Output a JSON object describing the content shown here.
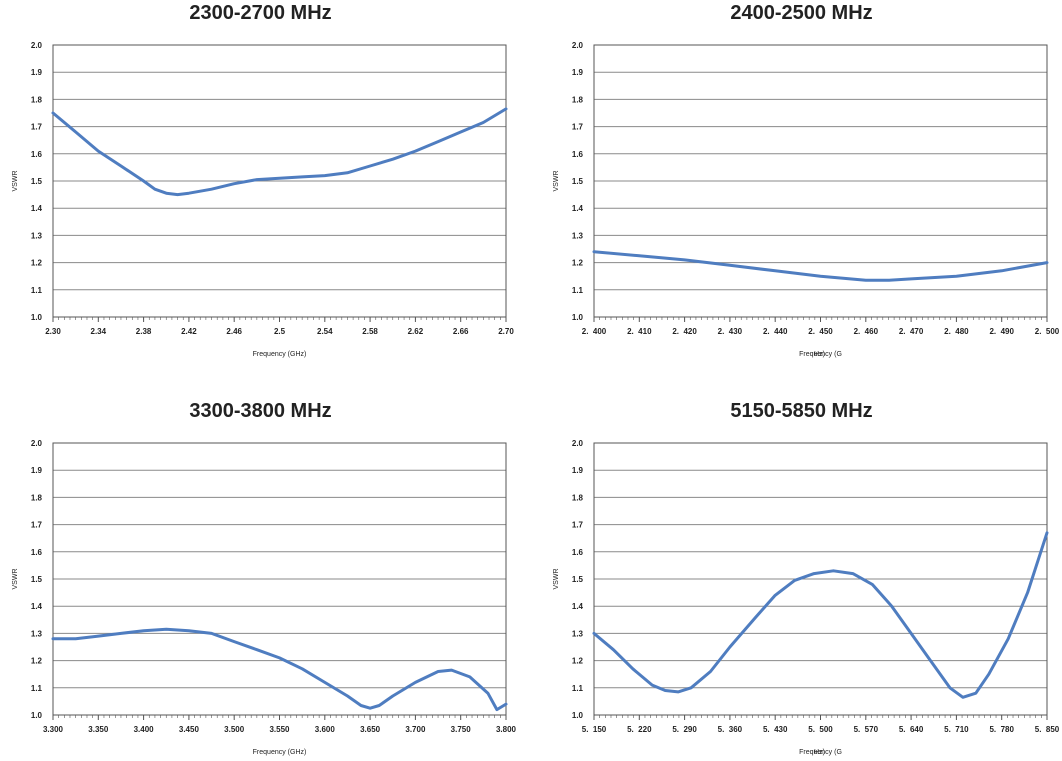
{
  "chart_data": [
    {
      "type": "line",
      "title": "2300-2700 MHz",
      "xlabel": "Frequency (GHz)",
      "ylabel": "VSWR",
      "ylim": [
        1.0,
        2.0
      ],
      "yticks": [
        "1.0",
        "1.1",
        "1.2",
        "1.3",
        "1.4",
        "1.5",
        "1.6",
        "1.7",
        "1.8",
        "1.9",
        "2.0"
      ],
      "xlim": [
        2.3,
        2.7
      ],
      "xticks": [
        "2.30",
        "2.34",
        "2.38",
        "2.42",
        "2.46",
        "2.5",
        "2.54",
        "2.58",
        "2.62",
        "2.66",
        "2.70"
      ],
      "grid": true,
      "color": "#4f7dc0",
      "series": [
        {
          "x": [
            2.3,
            2.32,
            2.34,
            2.36,
            2.38,
            2.39,
            2.4,
            2.41,
            2.42,
            2.44,
            2.46,
            2.48,
            2.5,
            2.52,
            2.54,
            2.56,
            2.58,
            2.6,
            2.62,
            2.64,
            2.66,
            2.68,
            2.7
          ],
          "values": [
            1.75,
            1.68,
            1.61,
            1.555,
            1.5,
            1.47,
            1.455,
            1.45,
            1.455,
            1.47,
            1.49,
            1.505,
            1.51,
            1.515,
            1.52,
            1.53,
            1.555,
            1.58,
            1.61,
            1.645,
            1.68,
            1.715,
            1.765
          ]
        }
      ]
    },
    {
      "type": "line",
      "title": "2400-2500 MHz",
      "xlabel": "Frequency (G",
      "xlabel_overlay": "Hz)",
      "ylabel": "VSWR",
      "ylim": [
        1.0,
        2.0
      ],
      "yticks": [
        "1.0",
        "1.1",
        "1.2",
        "1.3",
        "1.4",
        "1.5",
        "1.6",
        "1.7",
        "1.8",
        "1.9",
        "2.0"
      ],
      "xlim": [
        2.4,
        2.5
      ],
      "xticks": [
        "2.  400",
        "2.  410",
        "2.  420",
        "2.  430",
        "2.  440",
        "2.  450",
        "2.  460",
        "2.  470",
        "2.  480",
        "2.  490",
        "2.  500"
      ],
      "grid": true,
      "color": "#4f7dc0",
      "series": [
        {
          "x": [
            2.4,
            2.41,
            2.42,
            2.43,
            2.44,
            2.45,
            2.46,
            2.465,
            2.47,
            2.48,
            2.49,
            2.5
          ],
          "values": [
            1.24,
            1.225,
            1.21,
            1.19,
            1.17,
            1.15,
            1.135,
            1.135,
            1.14,
            1.15,
            1.17,
            1.2
          ]
        }
      ]
    },
    {
      "type": "line",
      "title": "3300-3800 MHz",
      "xlabel": "Frequency (GHz)",
      "ylabel": "VSWR",
      "ylim": [
        1.0,
        2.0
      ],
      "yticks": [
        "1.0",
        "1.1",
        "1.2",
        "1.3",
        "1.4",
        "1.5",
        "1.6",
        "1.7",
        "1.8",
        "1.9",
        "2.0"
      ],
      "xlim": [
        3.3,
        3.8
      ],
      "xticks": [
        "3.300",
        "3.350",
        "3.400",
        "3.450",
        "3.500",
        "3.550",
        "3.600",
        "3.650",
        "3.700",
        "3.750",
        "3.800"
      ],
      "grid": true,
      "color": "#4f7dc0",
      "series": [
        {
          "x": [
            3.3,
            3.325,
            3.35,
            3.375,
            3.4,
            3.425,
            3.45,
            3.475,
            3.5,
            3.525,
            3.55,
            3.575,
            3.6,
            3.625,
            3.64,
            3.65,
            3.66,
            3.675,
            3.7,
            3.725,
            3.74,
            3.76,
            3.78,
            3.79,
            3.8
          ],
          "values": [
            1.28,
            1.28,
            1.29,
            1.3,
            1.31,
            1.315,
            1.31,
            1.3,
            1.27,
            1.24,
            1.21,
            1.17,
            1.12,
            1.07,
            1.035,
            1.025,
            1.035,
            1.07,
            1.12,
            1.16,
            1.165,
            1.14,
            1.08,
            1.02,
            1.04
          ]
        }
      ]
    },
    {
      "type": "line",
      "title": "5150-5850 MHz",
      "xlabel": "Frequency (G",
      "xlabel_overlay": "Hz)",
      "ylabel": "VSWR",
      "ylim": [
        1.0,
        2.0
      ],
      "yticks": [
        "1.0",
        "1.1",
        "1.2",
        "1.3",
        "1.4",
        "1.5",
        "1.6",
        "1.7",
        "1.8",
        "1.9",
        "2.0"
      ],
      "xlim": [
        5.15,
        5.85
      ],
      "xticks": [
        "5.  150",
        "5.  220",
        "5.  290",
        "5.  360",
        "5.  430",
        "5.  500",
        "5.  570",
        "5.  640",
        "5.  710",
        "5.  780",
        "5.  850"
      ],
      "grid": true,
      "color": "#4f7dc0",
      "series": [
        {
          "x": [
            5.15,
            5.18,
            5.21,
            5.24,
            5.26,
            5.28,
            5.3,
            5.33,
            5.36,
            5.4,
            5.43,
            5.46,
            5.49,
            5.52,
            5.55,
            5.58,
            5.61,
            5.64,
            5.67,
            5.7,
            5.72,
            5.74,
            5.76,
            5.79,
            5.82,
            5.85
          ],
          "values": [
            1.3,
            1.24,
            1.17,
            1.11,
            1.09,
            1.085,
            1.1,
            1.16,
            1.25,
            1.36,
            1.44,
            1.495,
            1.52,
            1.53,
            1.52,
            1.48,
            1.4,
            1.3,
            1.2,
            1.1,
            1.065,
            1.08,
            1.15,
            1.28,
            1.45,
            1.67
          ]
        }
      ]
    }
  ]
}
